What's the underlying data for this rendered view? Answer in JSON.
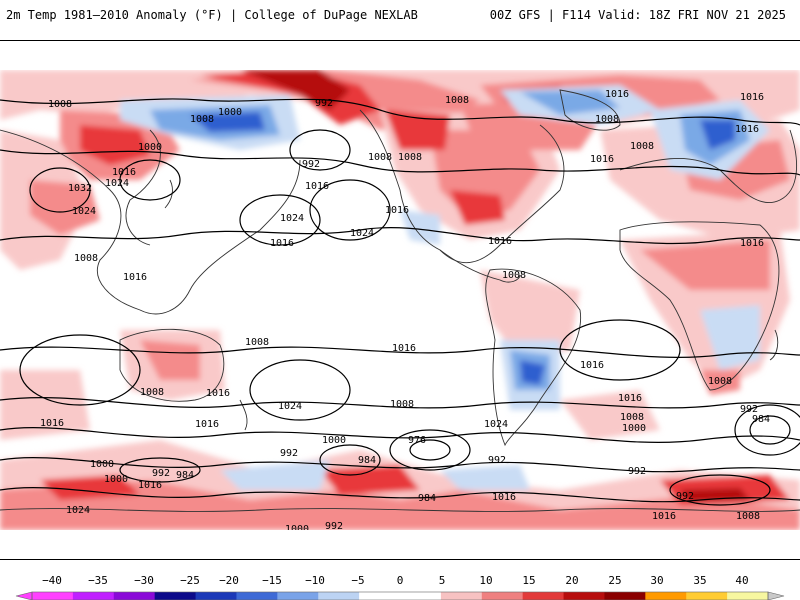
{
  "header": {
    "title": "2m Temp 1981–2010 Anomaly (°F) | College of DuPage NEXLAB",
    "run_info": "00Z GFS | F114 Valid: 18Z FRI NOV 21 2025"
  },
  "map": {
    "pressure_labels": [
      "1008",
      "1000",
      "992",
      "1008",
      "1016",
      "1008",
      "1008",
      "1000",
      "1016",
      "1016",
      "1032",
      "1024",
      "1016",
      "1024",
      "992",
      "1016",
      "1024",
      "1024",
      "1016",
      "1008",
      "1016",
      "1016",
      "1016",
      "1008",
      "1008",
      "1008",
      "1016",
      "1016",
      "1008",
      "1016",
      "1016",
      "1024",
      "1008",
      "1016",
      "1008",
      "1016",
      "1008",
      "1016",
      "1000",
      "992",
      "976",
      "984",
      "992",
      "984",
      "1000",
      "1024",
      "1000",
      "992",
      "984",
      "1016",
      "992",
      "1000",
      "1016",
      "1008",
      "992",
      "1024",
      "1016",
      "1016",
      "1008",
      "992",
      "984",
      "1000",
      "992",
      "1008"
    ],
    "colors": {
      "warm_light": "#f9c9c9",
      "warm_mid": "#f48b8b",
      "warm_strong": "#e8373a",
      "warm_deep": "#b50d0d",
      "cool_light": "#c9dcf4",
      "cool_mid": "#7aa9e6",
      "cool_strong": "#2f5fcf",
      "isobar": "#000000",
      "coastline": "#333333"
    }
  },
  "colorbar": {
    "ticks": [
      "−40",
      "−35",
      "−30",
      "−25",
      "−20",
      "−15",
      "−10",
      "−5",
      "0",
      "5",
      "10",
      "15",
      "20",
      "25",
      "30",
      "35",
      "40"
    ],
    "stops": [
      "#ff40ff",
      "#c020ff",
      "#8a0ad8",
      "#0c0a8a",
      "#1c39b8",
      "#3e6ad6",
      "#7aa3e8",
      "#bcd3f3",
      "#ffffff",
      "#ffffff",
      "#f7c2c2",
      "#ef8080",
      "#e23a3a",
      "#b70e0e",
      "#8a0000",
      "#ff9a00",
      "#ffcc33",
      "#f7f7a0"
    ]
  }
}
